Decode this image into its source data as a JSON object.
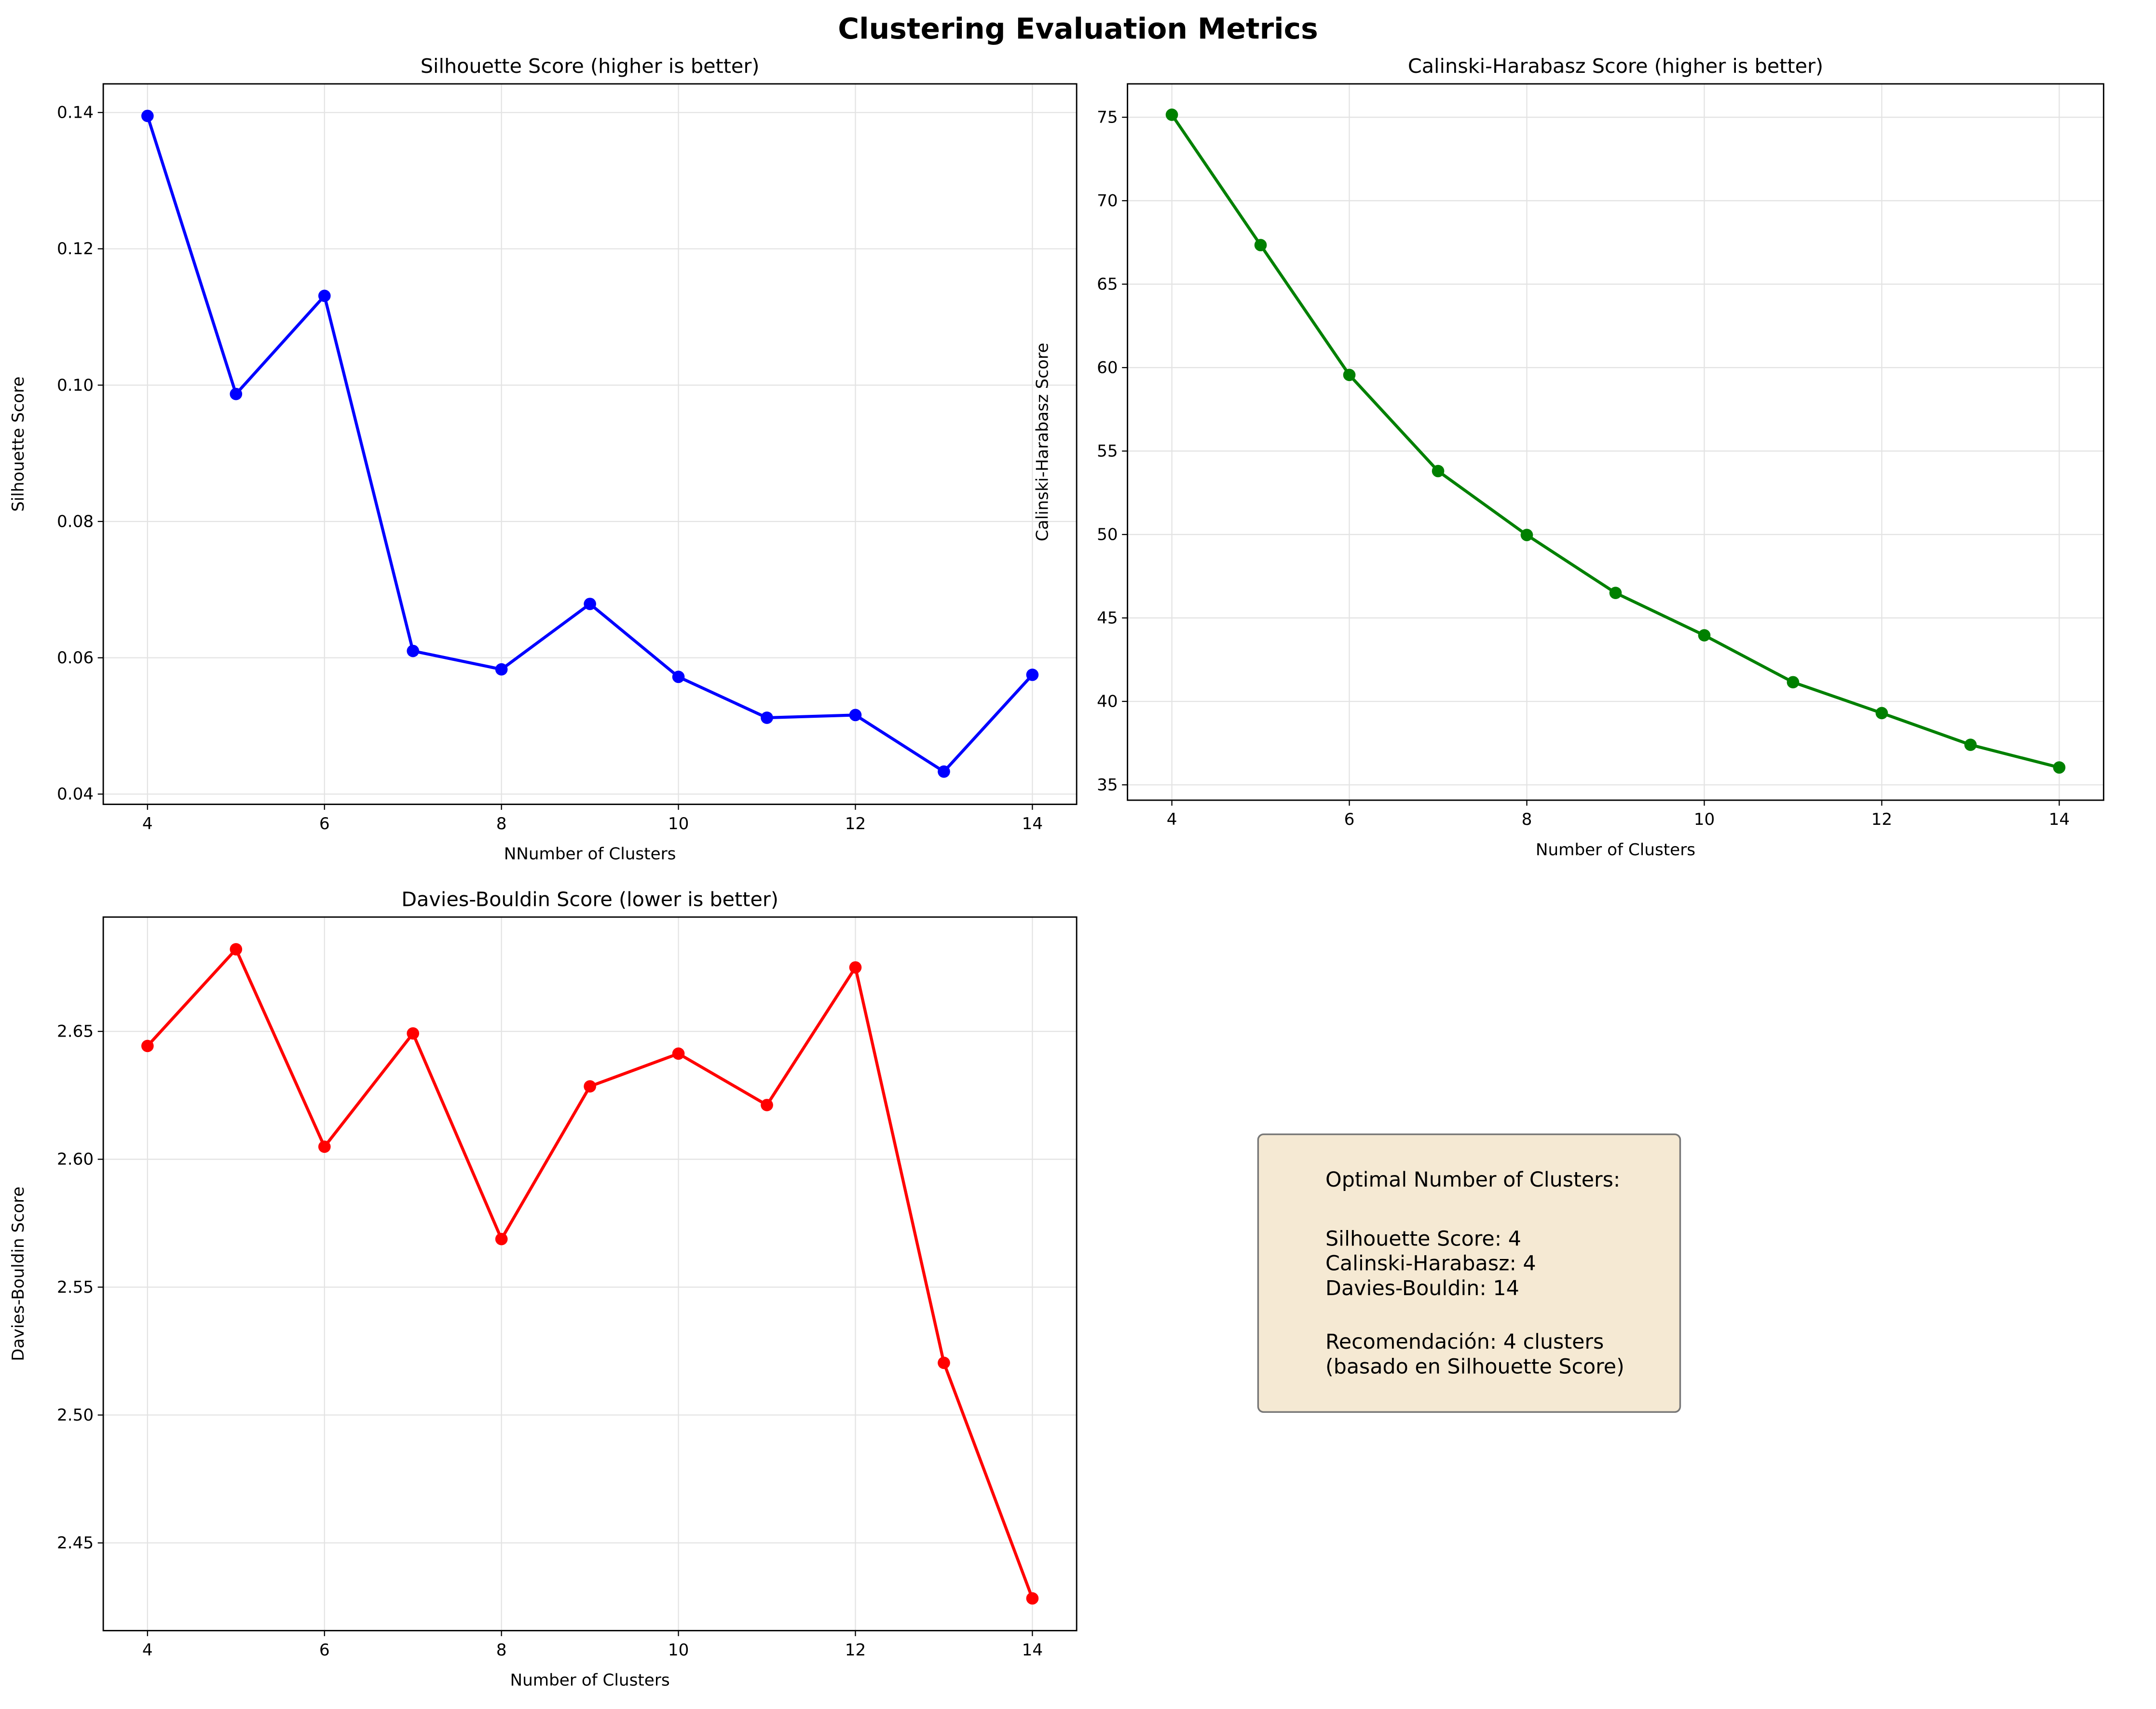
{
  "figure": {
    "title": "Clustering Evaluation Metrics"
  },
  "chart_data": [
    {
      "type": "line",
      "title": "Silhouette Score (higher is better)",
      "xlabel": "NNumber of Clusters",
      "ylabel": "Silhouette Score",
      "x": [
        4,
        5,
        6,
        7,
        8,
        9,
        10,
        11,
        12,
        13,
        14
      ],
      "values": [
        0.1395,
        0.0987,
        0.1131,
        0.061,
        0.0583,
        0.0679,
        0.0572,
        0.0512,
        0.0516,
        0.0433,
        0.0575
      ],
      "xlim": [
        3.5,
        14.5
      ],
      "ylim": [
        0.0385,
        0.1442
      ],
      "xticks": [
        4,
        6,
        8,
        10,
        12,
        14
      ],
      "xtick_labels": [
        "4",
        "6",
        "8",
        "10",
        "12",
        "14"
      ],
      "yticks": [
        0.04,
        0.06,
        0.08,
        0.1,
        0.12,
        0.14
      ],
      "ytick_labels": [
        "0.04",
        "0.06",
        "0.08",
        "0.10",
        "0.12",
        "0.14"
      ],
      "color": "#0000ff",
      "grid": true
    },
    {
      "type": "line",
      "title": "Calinski-Harabasz Score (higher is better)",
      "xlabel": "Number of Clusters",
      "ylabel": "Calinski-Harabasz Score",
      "x": [
        4,
        5,
        6,
        7,
        8,
        9,
        10,
        11,
        12,
        13,
        14
      ],
      "values": [
        75.15,
        67.34,
        59.56,
        53.8,
        49.97,
        46.5,
        43.96,
        41.15,
        39.3,
        37.4,
        36.04
      ],
      "xlim": [
        3.5,
        14.5
      ],
      "ylim": [
        34.08,
        77.0
      ],
      "xticks": [
        4,
        6,
        8,
        10,
        12,
        14
      ],
      "xtick_labels": [
        "4",
        "6",
        "8",
        "10",
        "12",
        "14"
      ],
      "yticks": [
        35,
        40,
        45,
        50,
        55,
        60,
        65,
        70,
        75
      ],
      "ytick_labels": [
        "35",
        "40",
        "45",
        "50",
        "55",
        "60",
        "65",
        "70",
        "75"
      ],
      "color": "#008000",
      "grid": true
    },
    {
      "type": "line",
      "title": "Davies-Bouldin Score (lower is better)",
      "xlabel": "Number of Clusters",
      "ylabel": "Davies-Bouldin Score",
      "x": [
        4,
        5,
        6,
        7,
        8,
        9,
        10,
        11,
        12,
        13,
        14
      ],
      "values": [
        2.6443,
        2.6821,
        2.6049,
        2.6492,
        2.5688,
        2.6285,
        2.6413,
        2.6212,
        2.675,
        2.5204,
        2.4283
      ],
      "xlim": [
        3.5,
        14.5
      ],
      "ylim": [
        2.4157,
        2.6947
      ],
      "xticks": [
        4,
        6,
        8,
        10,
        12,
        14
      ],
      "xtick_labels": [
        "4",
        "6",
        "8",
        "10",
        "12",
        "14"
      ],
      "yticks": [
        2.45,
        2.5,
        2.55,
        2.6,
        2.65
      ],
      "ytick_labels": [
        "2.45",
        "2.50",
        "2.55",
        "2.60",
        "2.65"
      ],
      "color": "#ff0000",
      "grid": true
    }
  ],
  "summary_box": {
    "lines": [
      "Optimal Number of Clusters:",
      "",
      "Silhouette Score: 4",
      "Calinski-Harabasz: 4",
      "Davies-Bouldin: 14",
      "",
      "Recomendación: 4 clusters",
      "(basado en Silhouette Score)"
    ],
    "background": "#f5e9d3"
  }
}
